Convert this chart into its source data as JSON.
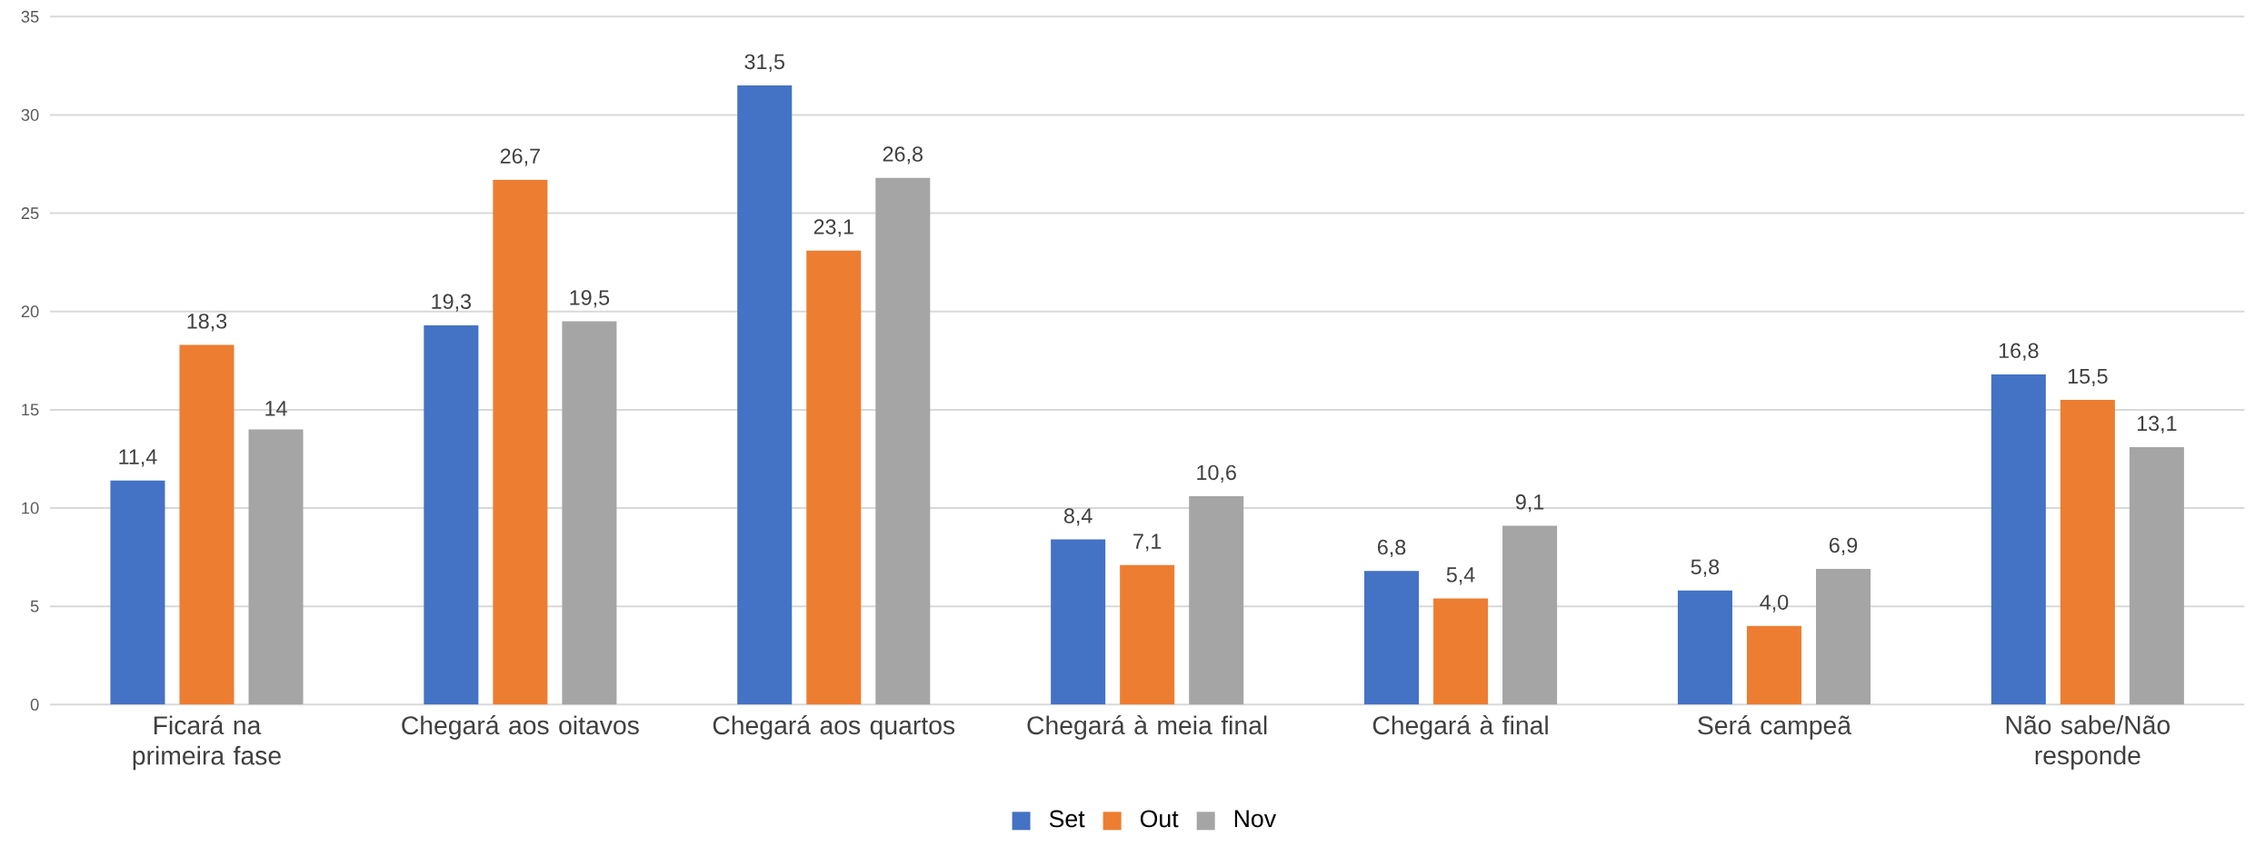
{
  "chart_data": {
    "type": "bar",
    "categories": [
      "Ficará na primeira fase",
      "Chegará aos oitavos",
      "Chegará aos quartos",
      "Chegará à meia final",
      "Chegará à final",
      "Será campeã",
      "Não sabe/Não responde"
    ],
    "series": [
      {
        "name": "Set",
        "color": "#4472c4",
        "values": [
          11.4,
          19.3,
          31.5,
          8.4,
          6.8,
          5.8,
          16.8
        ],
        "value_labels": [
          "11,4",
          "19,3",
          "31,5",
          "8,4",
          "6,8",
          "5,8",
          "16,8"
        ]
      },
      {
        "name": "Out",
        "color": "#ed7d31",
        "values": [
          18.3,
          26.7,
          23.1,
          7.1,
          5.4,
          4.0,
          15.5
        ],
        "value_labels": [
          "18,3",
          "26,7",
          "23,1",
          "7,1",
          "5,4",
          "4,0",
          "15,5"
        ]
      },
      {
        "name": "Nov",
        "color": "#a5a5a5",
        "values": [
          14.0,
          19.5,
          26.8,
          10.6,
          9.1,
          6.9,
          13.1
        ],
        "value_labels": [
          "14",
          "19,5",
          "26,8",
          "10,6",
          "9,1",
          "6,9",
          "13,1"
        ]
      }
    ],
    "ylim": [
      0,
      35
    ],
    "yticks": [
      0,
      5,
      10,
      15,
      20,
      25,
      30,
      35
    ],
    "grid": "y",
    "legend": "bottom"
  }
}
